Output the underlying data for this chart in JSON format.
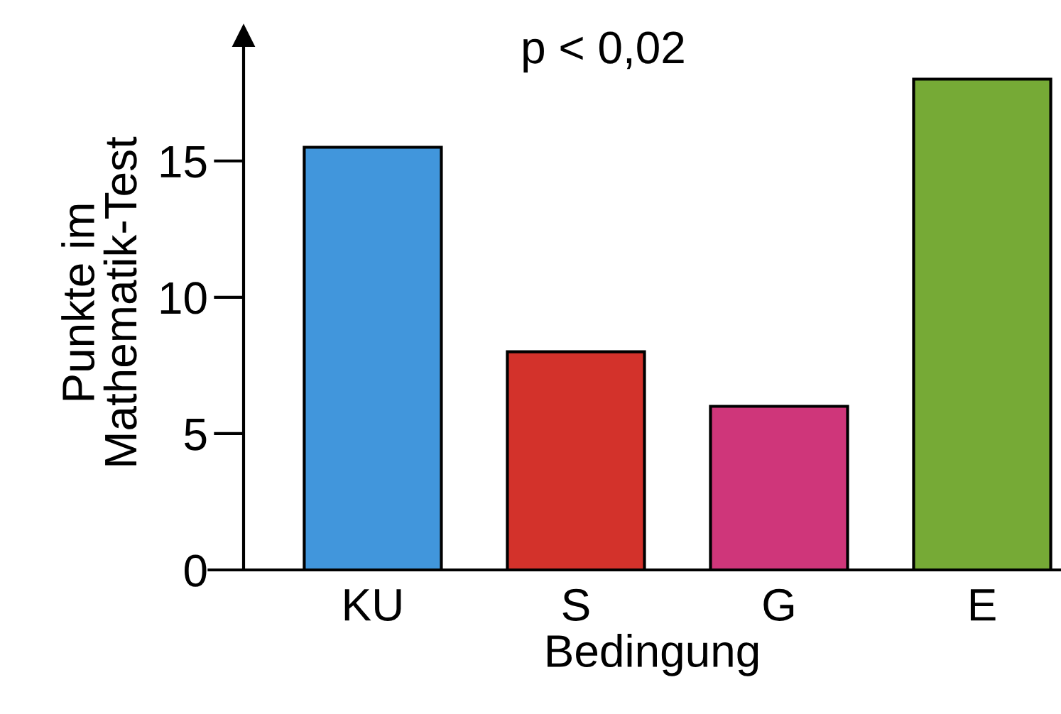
{
  "chart_data": {
    "type": "bar",
    "xlabel": "Bedingung",
    "ylabel": "Punkte im\nMathematik-Test",
    "categories": [
      "KU",
      "S",
      "G",
      "E"
    ],
    "values": [
      15.5,
      8,
      6,
      18
    ],
    "colors": [
      "#4196dc",
      "#d3322b",
      "#cf367a",
      "#76aa36"
    ],
    "ylim": [
      0,
      19.6
    ],
    "yticks": [
      0,
      5,
      10,
      15
    ],
    "grid": false,
    "legend": false,
    "annotations": [
      "p < 0,02"
    ]
  }
}
